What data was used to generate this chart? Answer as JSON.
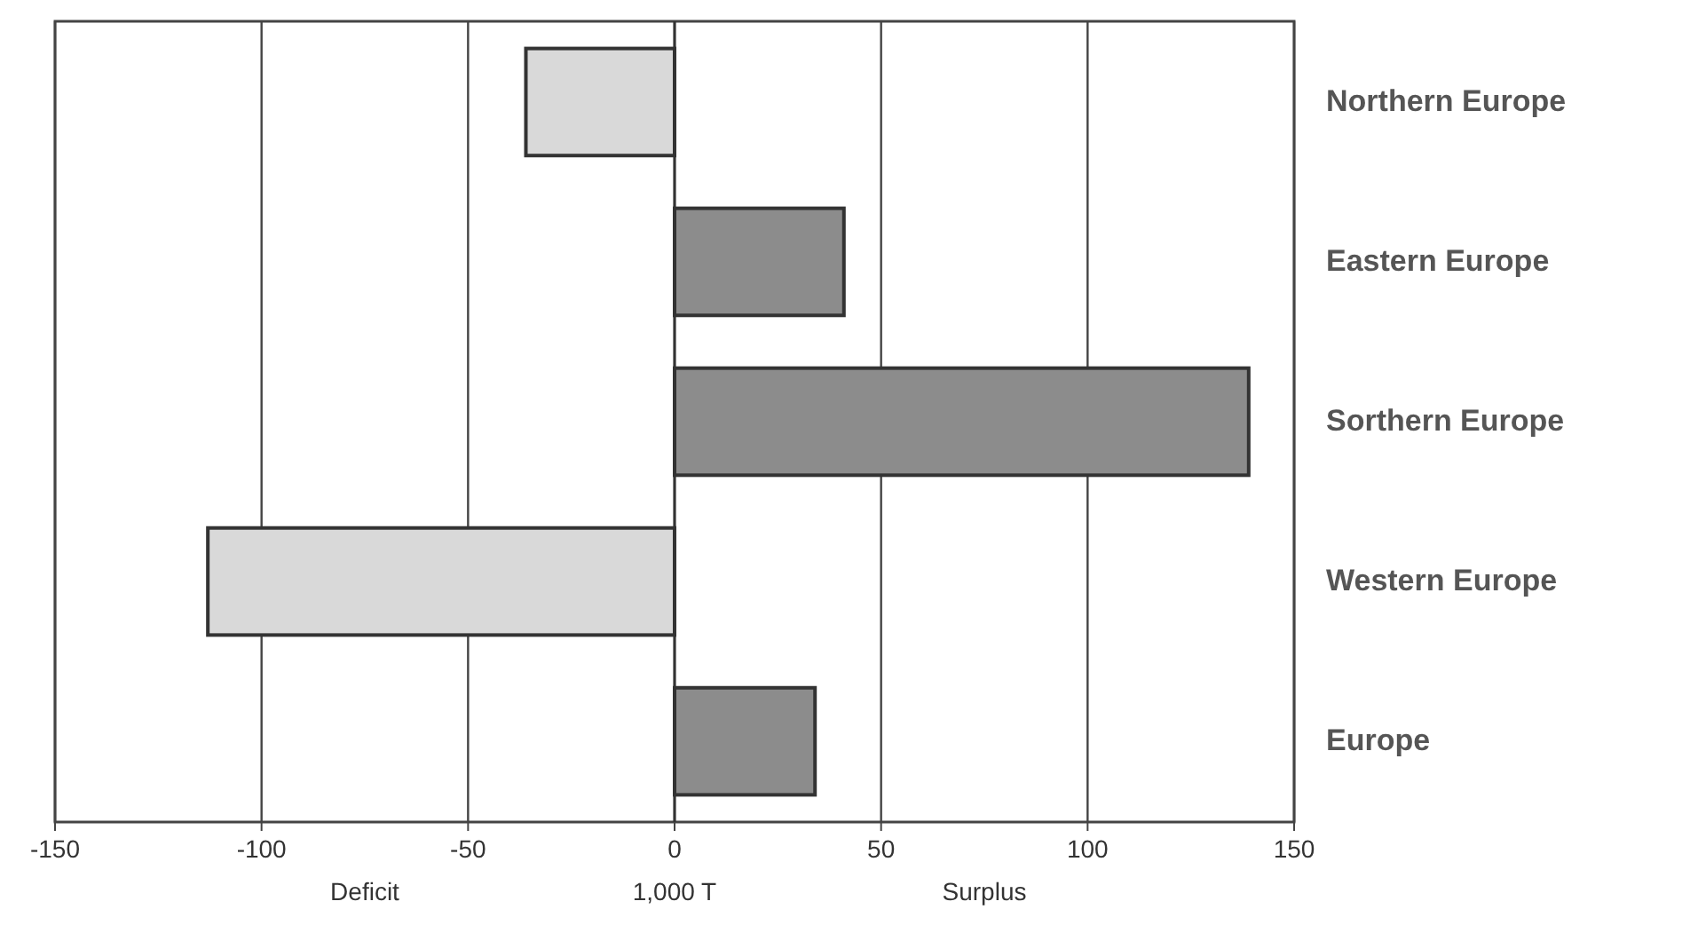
{
  "chart_data": {
    "type": "bar",
    "orientation": "horizontal",
    "categories": [
      "Northern Europe",
      "Eastern Europe",
      "Sorthern Europe",
      "Western Europe",
      "Europe"
    ],
    "values": [
      -36,
      41,
      139,
      -113,
      34
    ],
    "colors": [
      "#d9d9d9",
      "#8c8c8c",
      "#8c8c8c",
      "#d9d9d9",
      "#8c8c8c"
    ],
    "xlim": [
      -150,
      150
    ],
    "xticks": [
      -150,
      -100,
      -50,
      0,
      50,
      100,
      150
    ],
    "xlabel": "1,000 T",
    "annotations": [
      "Deficit",
      "Surplus"
    ],
    "grid": "x"
  }
}
